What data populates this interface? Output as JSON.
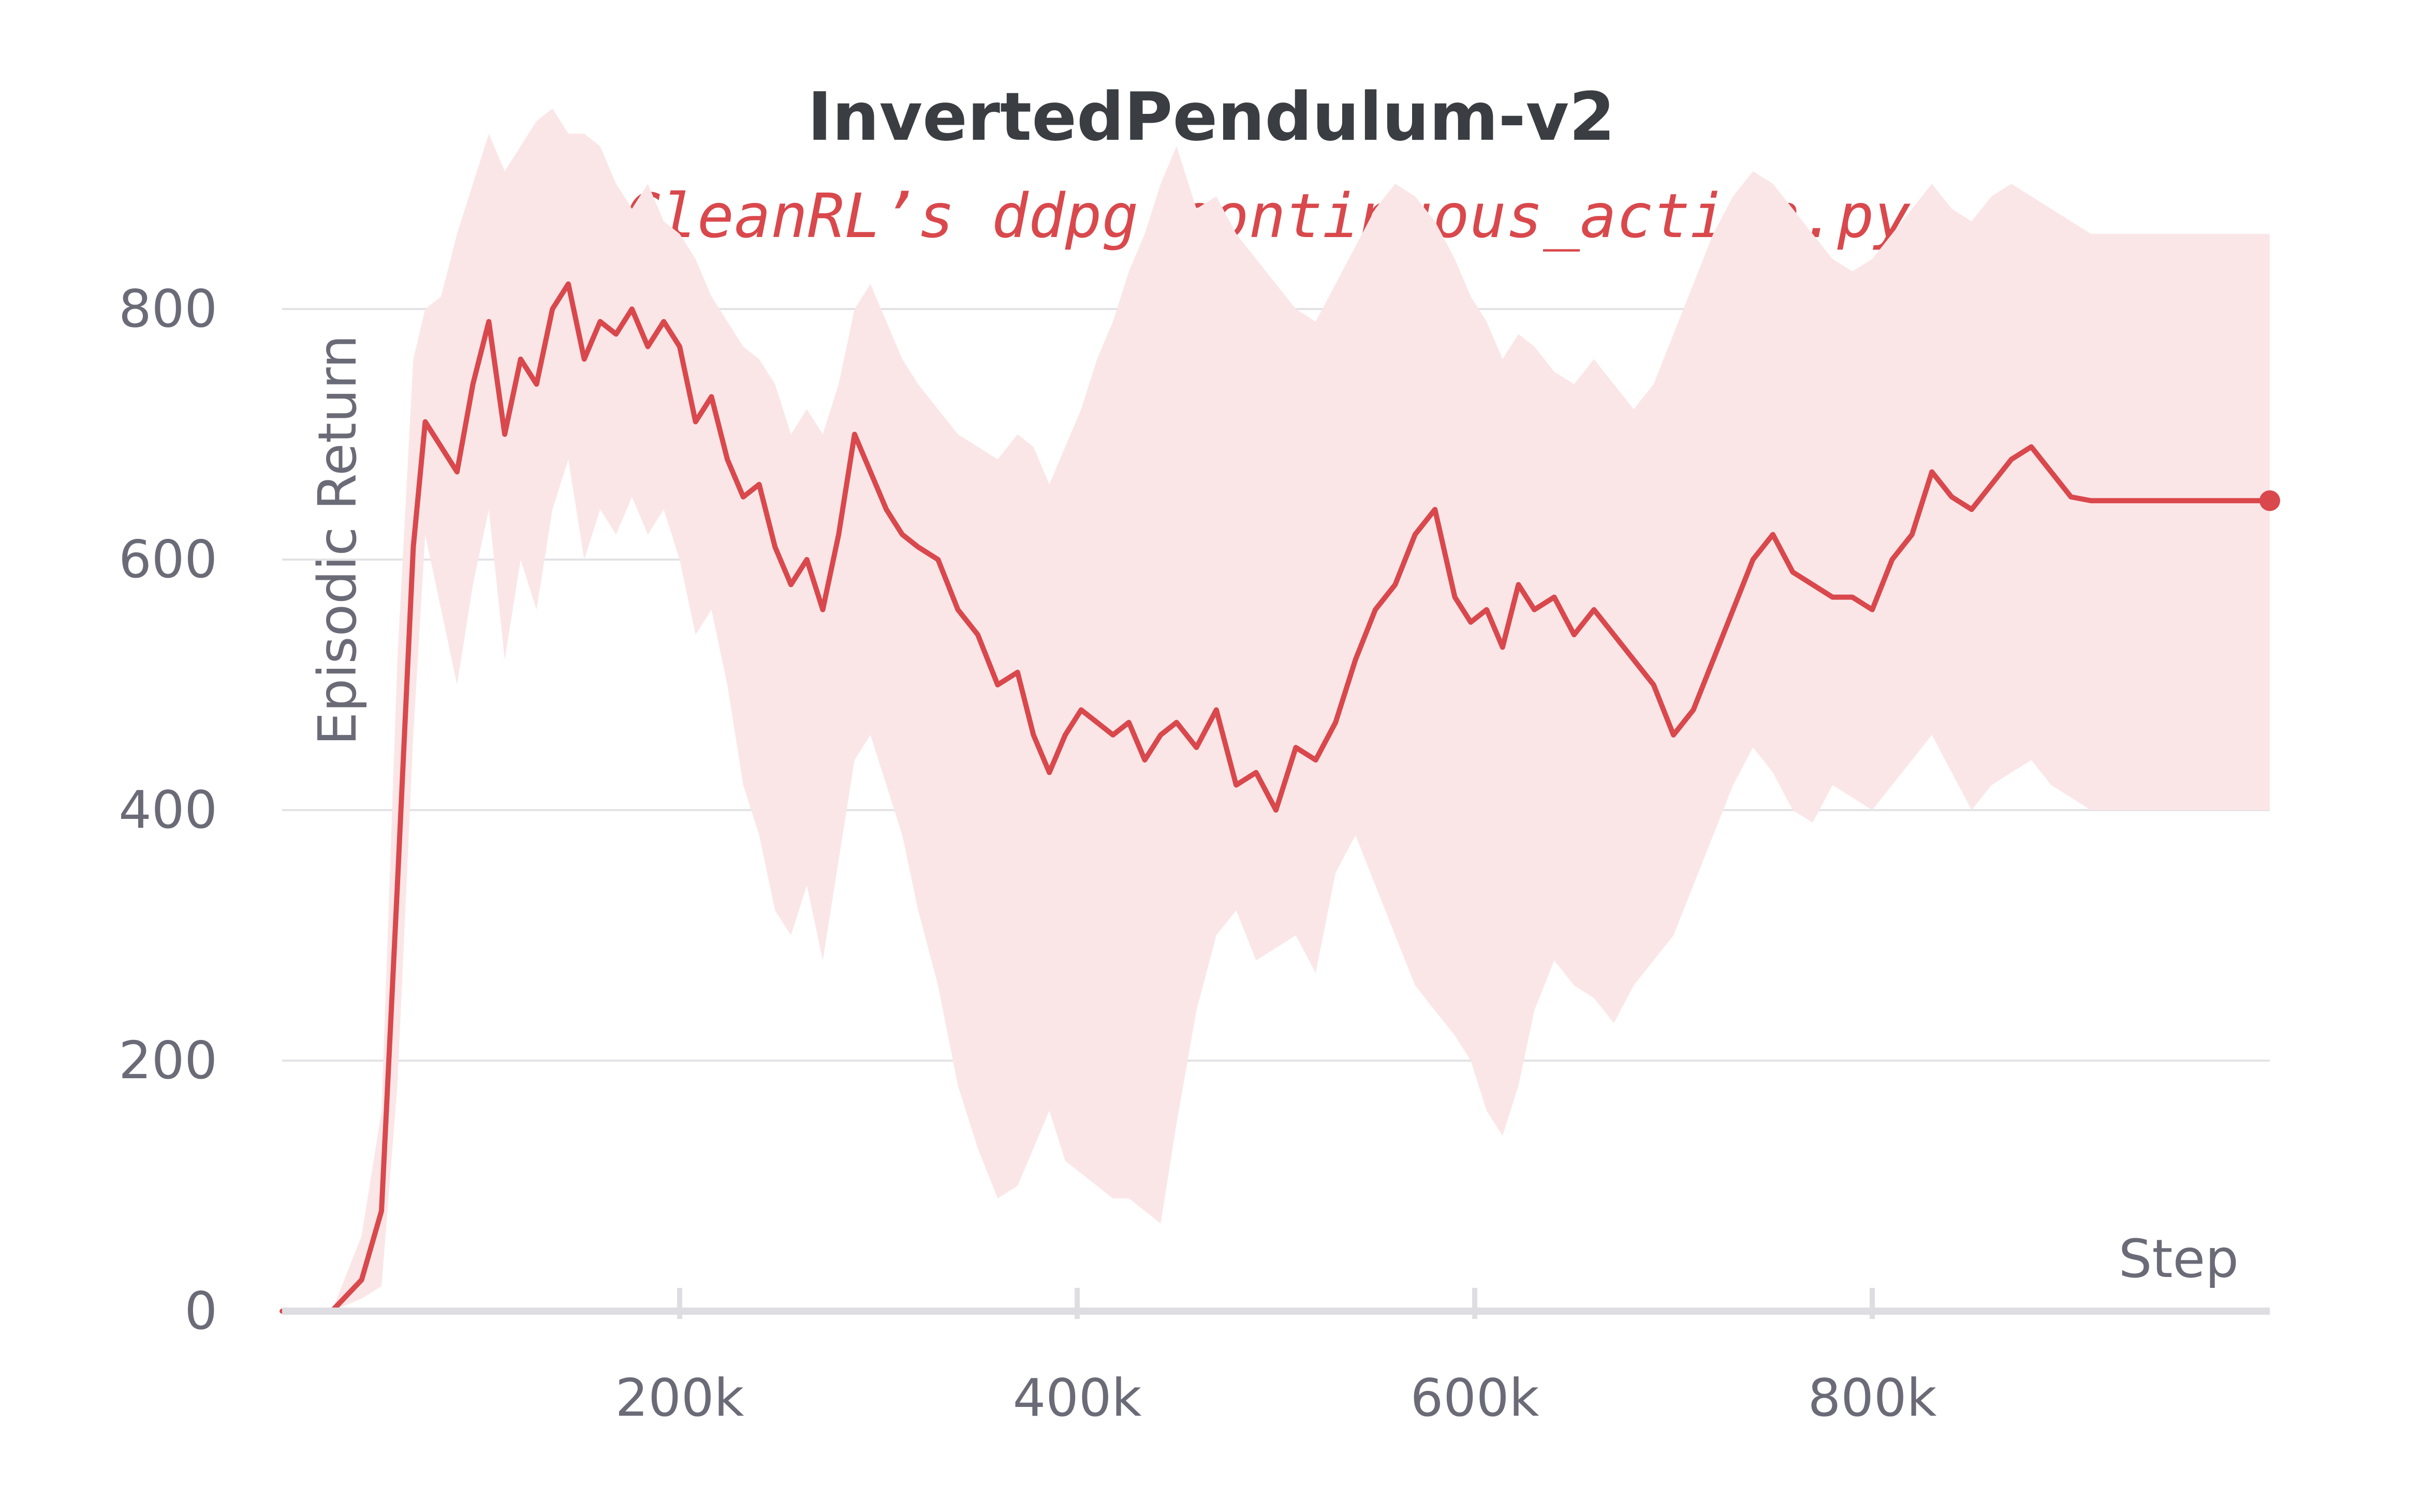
{
  "chart_data": {
    "type": "line",
    "title": "InvertedPendulum-v2",
    "xlabel": "Step",
    "ylabel": "Episodic Return",
    "xlim": [
      0,
      1000000
    ],
    "ylim": [
      0,
      900
    ],
    "x_ticks": [
      200000,
      400000,
      600000,
      800000
    ],
    "x_tick_labels": [
      "200k",
      "400k",
      "600k",
      "800k"
    ],
    "y_ticks": [
      0,
      200,
      400,
      600,
      800
    ],
    "y_tick_labels": [
      "0",
      "200",
      "400",
      "600",
      "800"
    ],
    "grid": "horizontal",
    "legend_position": "top-center",
    "color": "#d9484c",
    "band_color": "#fbe6e7",
    "series": [
      {
        "name": "CleanRL’s ddpg_continuous_action.py",
        "x": [
          0,
          25000,
          40000,
          50000,
          58000,
          66000,
          72000,
          80000,
          88000,
          96000,
          104000,
          112000,
          120000,
          128000,
          136000,
          144000,
          152000,
          160000,
          168000,
          176000,
          184000,
          192000,
          200000,
          208000,
          216000,
          224000,
          232000,
          240000,
          248000,
          256000,
          264000,
          272000,
          280000,
          288000,
          296000,
          304000,
          312000,
          320000,
          330000,
          340000,
          350000,
          360000,
          370000,
          378000,
          386000,
          394000,
          402000,
          410000,
          418000,
          426000,
          434000,
          442000,
          450000,
          460000,
          470000,
          480000,
          490000,
          500000,
          510000,
          520000,
          530000,
          540000,
          550000,
          560000,
          570000,
          580000,
          590000,
          598000,
          606000,
          614000,
          622000,
          630000,
          640000,
          650000,
          660000,
          670000,
          680000,
          690000,
          700000,
          710000,
          720000,
          730000,
          740000,
          750000,
          760000,
          770000,
          780000,
          790000,
          800000,
          810000,
          820000,
          830000,
          840000,
          850000,
          860000,
          870000,
          880000,
          890000,
          900000,
          910000,
          920000,
          930000,
          940000,
          950000,
          960000,
          970000,
          980000,
          990000,
          1000000
        ],
        "y": [
          0,
          0,
          25,
          80,
          340,
          610,
          710,
          690,
          670,
          740,
          790,
          700,
          760,
          740,
          800,
          820,
          760,
          790,
          780,
          800,
          770,
          790,
          770,
          710,
          730,
          680,
          650,
          660,
          610,
          580,
          600,
          560,
          620,
          700,
          670,
          640,
          620,
          610,
          600,
          560,
          540,
          500,
          510,
          460,
          430,
          460,
          480,
          470,
          460,
          470,
          440,
          460,
          470,
          450,
          480,
          420,
          430,
          400,
          450,
          440,
          470,
          520,
          560,
          580,
          620,
          640,
          570,
          550,
          560,
          530,
          580,
          560,
          570,
          540,
          560,
          540,
          520,
          500,
          460,
          480,
          520,
          560,
          600,
          620,
          590,
          580,
          570,
          570,
          560,
          600,
          620,
          670,
          650,
          640,
          660,
          680,
          690,
          670,
          650,
          647,
          647,
          647,
          647,
          647,
          647,
          647,
          647,
          647,
          647
        ],
        "upper": [
          0,
          0,
          60,
          160,
          520,
          760,
          800,
          810,
          860,
          900,
          940,
          910,
          930,
          950,
          960,
          940,
          940,
          930,
          900,
          880,
          900,
          870,
          860,
          840,
          810,
          790,
          770,
          760,
          740,
          700,
          720,
          700,
          740,
          800,
          820,
          790,
          760,
          740,
          720,
          700,
          690,
          680,
          700,
          690,
          660,
          690,
          720,
          760,
          790,
          830,
          860,
          900,
          930,
          880,
          890,
          860,
          840,
          820,
          800,
          790,
          820,
          850,
          880,
          900,
          890,
          870,
          840,
          810,
          790,
          760,
          780,
          770,
          750,
          740,
          760,
          740,
          720,
          740,
          780,
          820,
          860,
          890,
          910,
          900,
          880,
          860,
          840,
          830,
          840,
          860,
          880,
          900,
          880,
          870,
          890,
          900,
          890,
          880,
          870,
          860,
          860,
          860,
          860,
          860,
          860,
          860,
          860,
          860,
          860
        ],
        "lower": [
          0,
          0,
          10,
          20,
          180,
          460,
          620,
          560,
          500,
          580,
          640,
          520,
          600,
          560,
          640,
          680,
          600,
          640,
          620,
          650,
          620,
          640,
          600,
          540,
          560,
          500,
          420,
          380,
          320,
          300,
          340,
          280,
          360,
          440,
          460,
          420,
          380,
          320,
          260,
          180,
          130,
          90,
          100,
          130,
          160,
          120,
          110,
          100,
          90,
          90,
          80,
          70,
          150,
          240,
          300,
          320,
          280,
          290,
          300,
          270,
          350,
          380,
          340,
          300,
          260,
          240,
          220,
          200,
          160,
          140,
          180,
          240,
          280,
          260,
          250,
          230,
          260,
          280,
          300,
          340,
          380,
          420,
          450,
          430,
          400,
          390,
          420,
          410,
          400,
          420,
          440,
          460,
          430,
          400,
          420,
          430,
          440,
          420,
          410,
          400,
          400,
          400,
          400,
          400,
          400,
          400,
          400,
          400,
          400
        ]
      }
    ]
  }
}
